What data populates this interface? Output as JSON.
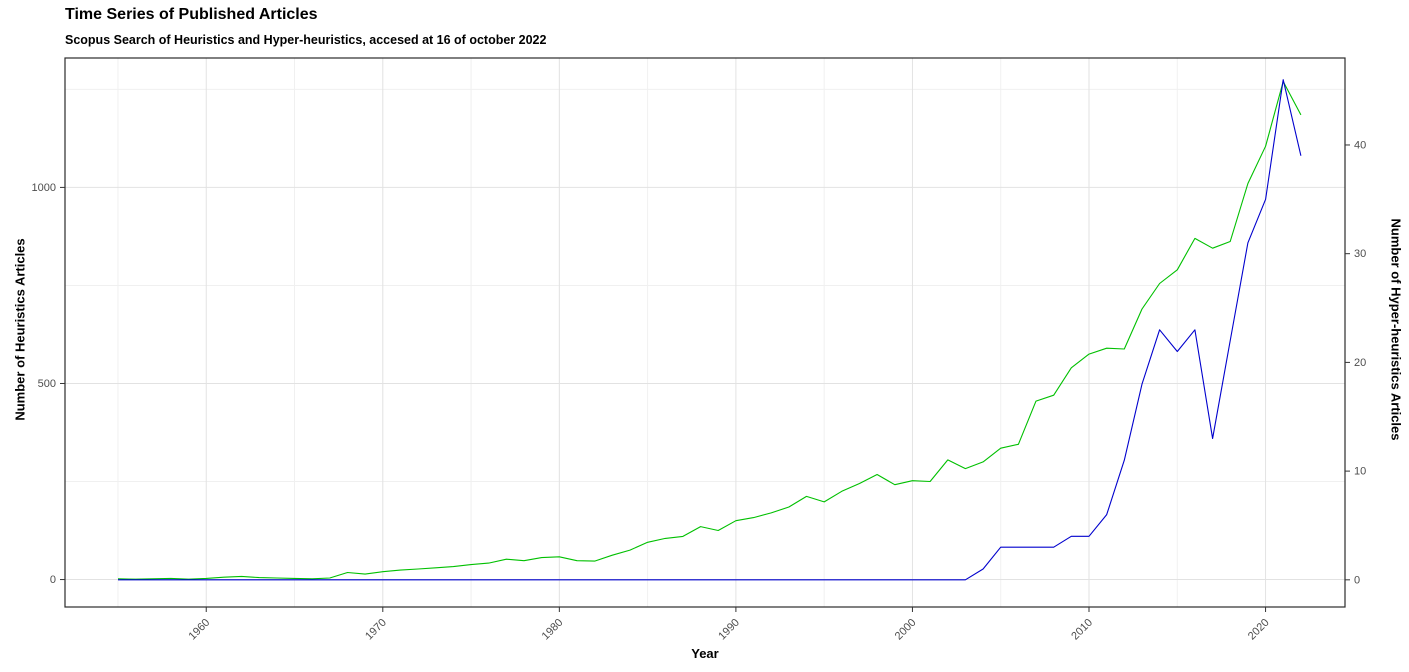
{
  "header": {
    "title": "Time Series of Published Articles",
    "subtitle": "Scopus Search of Heuristics and Hyper-heuristics, accesed at 16 of october 2022"
  },
  "chart_data": {
    "type": "line",
    "title": "Time Series of Published Articles",
    "subtitle": "Scopus Search of Heuristics and Hyper-heuristics, accesed at 16 of october 2022",
    "xlabel": "Year",
    "ylabel_left": "Number of Heuristics Articles",
    "ylabel_right": "Number of Hyper-heuristics Articles",
    "legend": "none",
    "grid": true,
    "x": [
      1955,
      1956,
      1957,
      1958,
      1959,
      1960,
      1961,
      1962,
      1963,
      1964,
      1965,
      1966,
      1967,
      1968,
      1969,
      1970,
      1971,
      1972,
      1973,
      1974,
      1975,
      1976,
      1977,
      1978,
      1979,
      1980,
      1981,
      1982,
      1983,
      1984,
      1985,
      1986,
      1987,
      1988,
      1989,
      1990,
      1991,
      1992,
      1993,
      1994,
      1995,
      1996,
      1997,
      1998,
      1999,
      2000,
      2001,
      2002,
      2003,
      2004,
      2005,
      2006,
      2007,
      2008,
      2009,
      2010,
      2011,
      2012,
      2013,
      2014,
      2015,
      2016,
      2017,
      2018,
      2019,
      2020,
      2021,
      2022
    ],
    "series": [
      {
        "name": "Heuristics",
        "axis": "left",
        "color": "#00c000",
        "values": [
          2,
          1,
          2,
          3,
          1,
          3,
          6,
          8,
          5,
          4,
          3,
          2,
          4,
          18,
          14,
          20,
          24,
          27,
          30,
          33,
          38,
          42,
          52,
          48,
          56,
          58,
          48,
          47,
          62,
          75,
          95,
          105,
          110,
          135,
          125,
          150,
          158,
          170,
          185,
          212,
          198,
          225,
          245,
          268,
          242,
          252,
          250,
          305,
          283,
          300,
          335,
          345,
          455,
          470,
          540,
          575,
          590,
          588,
          690,
          755,
          790,
          870,
          845,
          862,
          1010,
          1105,
          1270,
          1185
        ]
      },
      {
        "name": "Hyper-heuristics",
        "axis": "right",
        "color": "#0000cd",
        "values": [
          0,
          0,
          0,
          0,
          0,
          0,
          0,
          0,
          0,
          0,
          0,
          0,
          0,
          0,
          0,
          0,
          0,
          0,
          0,
          0,
          0,
          0,
          0,
          0,
          0,
          0,
          0,
          0,
          0,
          0,
          0,
          0,
          0,
          0,
          0,
          0,
          0,
          0,
          0,
          0,
          0,
          0,
          0,
          0,
          0,
          0,
          0,
          0,
          0,
          1,
          3,
          3,
          3,
          3,
          4,
          4,
          6,
          11,
          18,
          23,
          21,
          23,
          13,
          22,
          31,
          35,
          46,
          39
        ]
      }
    ],
    "x_ticks": [
      1960,
      1970,
      1980,
      1990,
      2000,
      2010,
      2020
    ],
    "y_left_ticks": [
      0,
      500,
      1000
    ],
    "y_right_ticks": [
      0,
      10,
      20,
      30,
      40
    ],
    "x_domain": [
      1952,
      2024.5
    ],
    "y_left_domain": [
      -70,
      1330
    ],
    "y_right_domain": [
      -2.5,
      48
    ],
    "colors": {
      "panel_border": "#2b2b2b",
      "grid_major": "#e2e2e2",
      "grid_minor": "#f0f0f0",
      "tick_label": "#4d4d4d",
      "tick_mark": "#333333"
    }
  }
}
